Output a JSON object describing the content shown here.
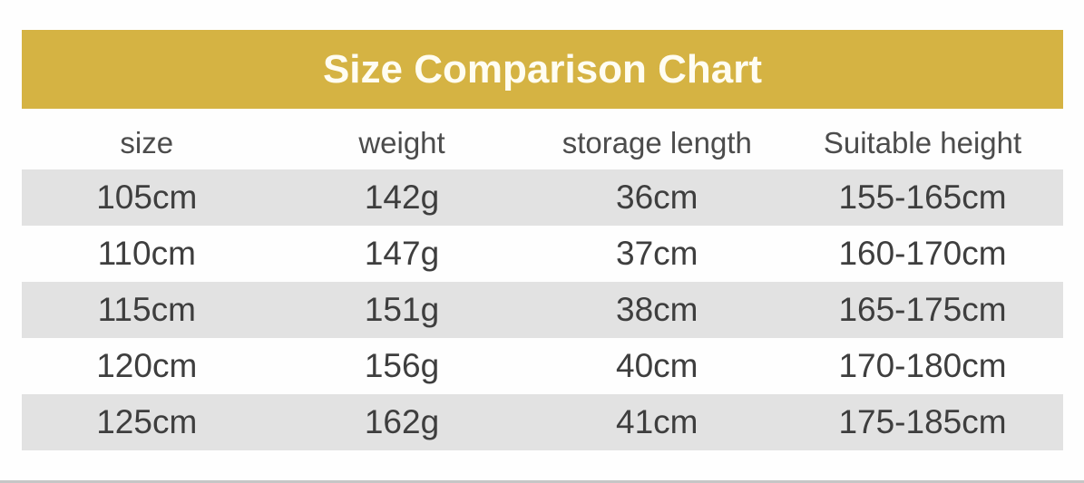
{
  "title": "Size Comparison Chart",
  "colors": {
    "banner_gold": "#d5b343",
    "title_text": "#fffdf2",
    "header_text": "#4c4c4c",
    "body_text": "#3e3e3e",
    "row_alt_bg": "#e2e2e2",
    "bottom_bar": "#c6c6c6"
  },
  "table": {
    "columns": [
      "size",
      "weight",
      "storage length",
      "Suitable height"
    ],
    "rows": [
      [
        "105cm",
        "142g",
        "36cm",
        "155-165cm"
      ],
      [
        "110cm",
        "147g",
        "37cm",
        "160-170cm"
      ],
      [
        "115cm",
        "151g",
        "38cm",
        "165-175cm"
      ],
      [
        "120cm",
        "156g",
        "40cm",
        "170-180cm"
      ],
      [
        "125cm",
        "162g",
        "41cm",
        "175-185cm"
      ]
    ]
  },
  "chart_data": {
    "type": "table",
    "title": "Size Comparison Chart",
    "columns": [
      "size",
      "weight",
      "storage length",
      "Suitable height"
    ],
    "rows": [
      {
        "size": "105cm",
        "weight": "142g",
        "storage_length": "36cm",
        "suitable_height": "155-165cm"
      },
      {
        "size": "110cm",
        "weight": "147g",
        "storage_length": "37cm",
        "suitable_height": "160-170cm"
      },
      {
        "size": "115cm",
        "weight": "151g",
        "storage_length": "38cm",
        "suitable_height": "165-175cm"
      },
      {
        "size": "120cm",
        "weight": "156g",
        "storage_length": "40cm",
        "suitable_height": "170-180cm"
      },
      {
        "size": "125cm",
        "weight": "162g",
        "storage_length": "41cm",
        "suitable_height": "175-185cm"
      }
    ],
    "layout": {
      "alternating_row_shading": "rows 1,3,5 shaded light gray starting with first data row",
      "header_banner": "gold bar with centered white title above table",
      "grid": "off"
    }
  }
}
